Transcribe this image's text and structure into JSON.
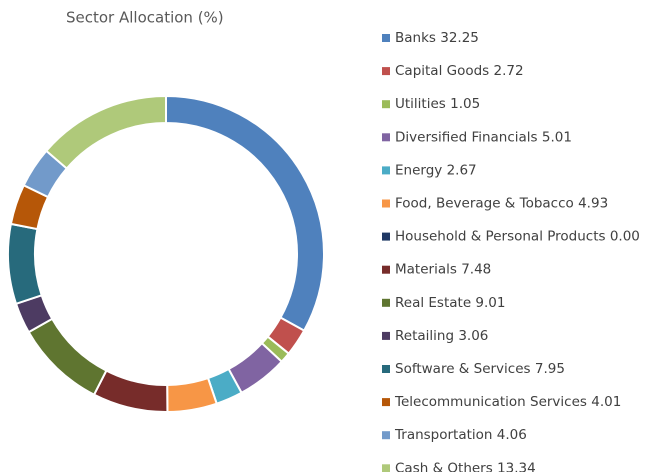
{
  "chart_data": {
    "type": "donut",
    "title": "Sector Allocation (%)",
    "categories": [
      "Banks",
      "Capital Goods",
      "Utilities",
      "Diversified Financials",
      "Energy",
      "Food, Beverage & Tobacco",
      "Household & Personal Products",
      "Materials",
      "Real Estate",
      "Retailing",
      "Software & Services",
      "Telecommunication Services",
      "Transportation",
      "Cash & Others"
    ],
    "values": [
      32.25,
      2.72,
      1.05,
      5.01,
      2.67,
      4.93,
      0,
      7.48,
      9.01,
      3.06,
      7.95,
      4.01,
      4.06,
      13.34
    ],
    "value_labels": [
      "32.25",
      "2.72",
      "1.05",
      "5.01",
      "2.67",
      "4.93",
      "0.00",
      "7.48",
      "9.01",
      "3.06",
      "7.95",
      "4.01",
      "4.06",
      "13.34"
    ],
    "colors": [
      "#4f81bd",
      "#c0504d",
      "#9bbb59",
      "#8064a2",
      "#4bacc6",
      "#f79646",
      "#1f3864",
      "#772c2a",
      "#5f7530",
      "#4d3b62",
      "#276a7c",
      "#b65708",
      "#729aca",
      "#afc97a"
    ],
    "legend": "right"
  }
}
